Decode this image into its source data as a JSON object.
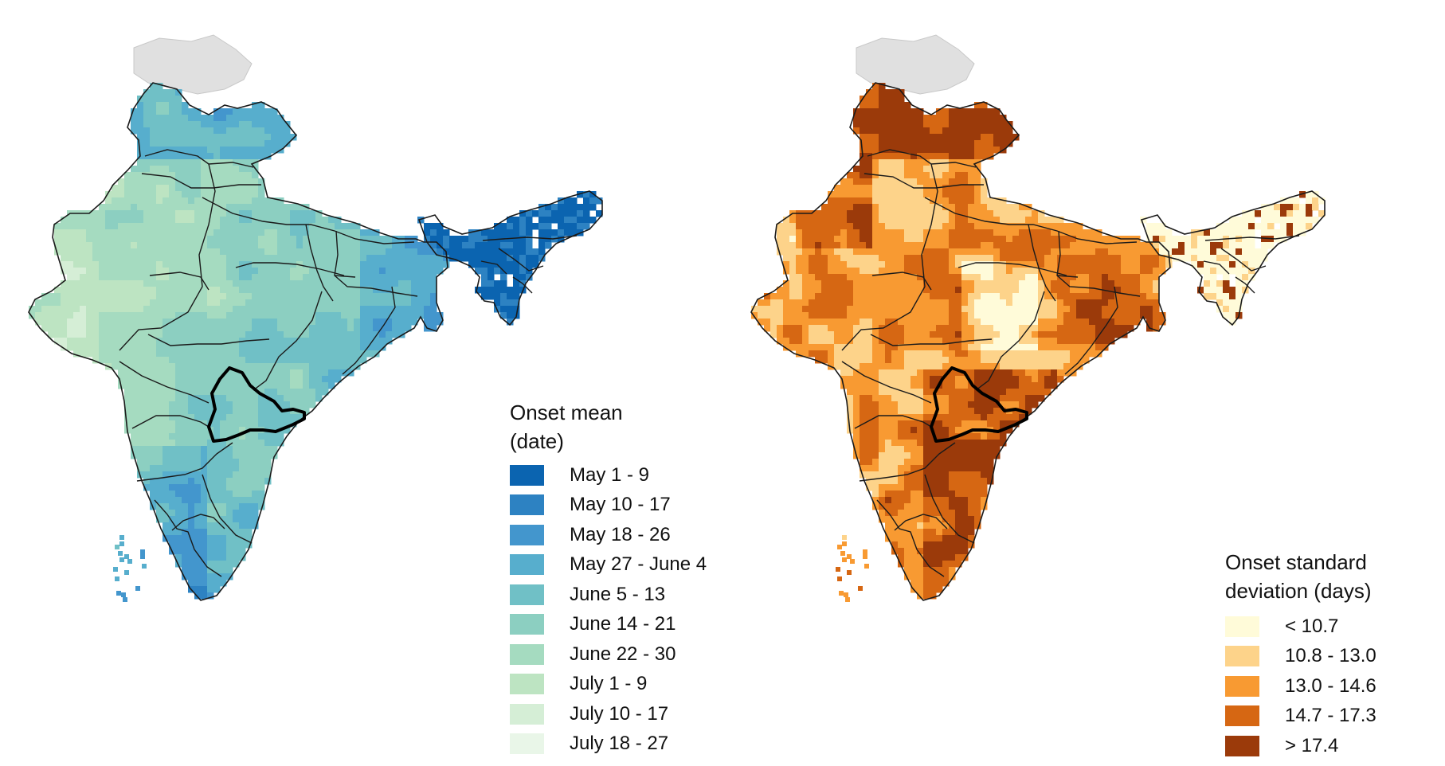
{
  "maps": [
    {
      "id": "mean",
      "legend_title_lines": [
        "Onset mean",
        "(date)"
      ],
      "palette": "blues",
      "legend": [
        {
          "label": "May 1 - 9",
          "color": "#0b64b0"
        },
        {
          "label": "May 10 - 17",
          "color": "#2d82c2"
        },
        {
          "label": "May 18 - 26",
          "color": "#4396cd"
        },
        {
          "label": "May 27 - June 4",
          "color": "#57aecd"
        },
        {
          "label": "June 5 - 13",
          "color": "#70c0c6"
        },
        {
          "label": "June 14 - 21",
          "color": "#8ccfc1"
        },
        {
          "label": "June 22 - 30",
          "color": "#a5dbc0"
        },
        {
          "label": "July 1 - 9",
          "color": "#bde4c2"
        },
        {
          "label": "July 10 - 17",
          "color": "#d5eed6"
        },
        {
          "label": "July 18 - 27",
          "color": "#e9f6e8"
        }
      ]
    },
    {
      "id": "std",
      "legend_title_lines": [
        "Onset standard",
        "deviation (days)"
      ],
      "palette": "oranges",
      "legend": [
        {
          "label": "< 10.7",
          "color": "#fffbd9"
        },
        {
          "label": "10.8 - 13.0",
          "color": "#fdd38a"
        },
        {
          "label": "13.0 - 14.6",
          "color": "#f89a32"
        },
        {
          "label": "14.7 - 17.3",
          "color": "#d66713"
        },
        {
          "label": "> 17.4",
          "color": "#9b3a0a"
        }
      ]
    }
  ],
  "colors": {
    "no_data_region": "#e0e0e0",
    "state_boundary": "#1a1a1a",
    "highlight_boundary": "#000000"
  }
}
